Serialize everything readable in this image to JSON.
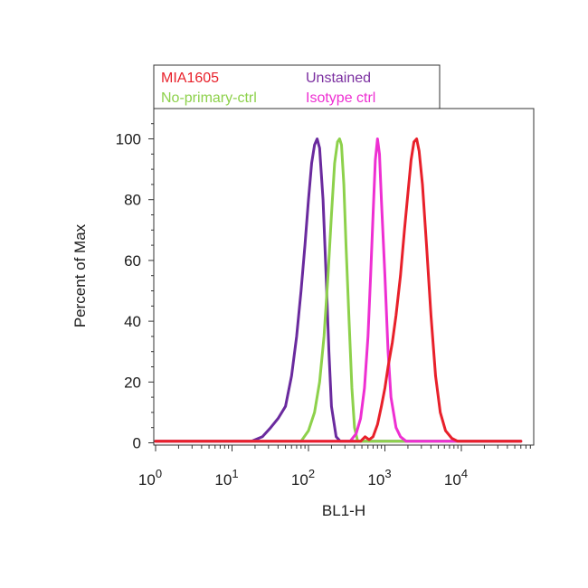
{
  "chart_data": {
    "type": "line",
    "xlabel": "BL1-H",
    "ylabel": "Percent of Max",
    "x_scale": "log",
    "xlim": [
      1,
      60000
    ],
    "ylim": [
      0,
      110
    ],
    "grid": false,
    "legend_position": "top",
    "y_ticks": [
      "0",
      "20",
      "40",
      "60",
      "80",
      "100"
    ],
    "x_ticks": [
      {
        "base": "10",
        "exp": "0"
      },
      {
        "base": "10",
        "exp": "1"
      },
      {
        "base": "10",
        "exp": "2"
      },
      {
        "base": "10",
        "exp": "3"
      },
      {
        "base": "10",
        "exp": "4"
      }
    ],
    "legend": [
      {
        "label": "MIA1605",
        "color": "#e8202a"
      },
      {
        "label": "Unstained",
        "color": "#7b2fa0"
      },
      {
        "label": "No-primary-ctrl",
        "color": "#8dd14b"
      },
      {
        "label": "Isotype ctrl",
        "color": "#ee2fd2"
      }
    ],
    "series": [
      {
        "name": "Unstained",
        "color": "#6a2a9e",
        "x": [
          1,
          18,
          25,
          32,
          40,
          50,
          60,
          70,
          80,
          90,
          100,
          110,
          120,
          130,
          140,
          155,
          170,
          185,
          200,
          230,
          260,
          300,
          60000
        ],
        "y": [
          0.5,
          0.5,
          2,
          5,
          8,
          12,
          22,
          35,
          50,
          65,
          80,
          92,
          98,
          100,
          97,
          80,
          55,
          30,
          12,
          2,
          0.5,
          0.5,
          0.5
        ]
      },
      {
        "name": "No-primary-ctrl",
        "color": "#8dd14b",
        "x": [
          1,
          80,
          100,
          120,
          140,
          160,
          180,
          200,
          220,
          240,
          255,
          270,
          290,
          310,
          340,
          370,
          400,
          440,
          60000
        ],
        "y": [
          0.5,
          0.5,
          4,
          10,
          20,
          35,
          55,
          75,
          92,
          99,
          100,
          98,
          85,
          65,
          40,
          18,
          5,
          0.5,
          0.5
        ]
      },
      {
        "name": "Isotype ctrl",
        "color": "#ee2fd2",
        "x": [
          1,
          350,
          420,
          480,
          540,
          600,
          650,
          700,
          750,
          800,
          850,
          900,
          1000,
          1100,
          1200,
          1400,
          1600,
          1900,
          60000
        ],
        "y": [
          0.5,
          0.5,
          3,
          8,
          18,
          35,
          55,
          75,
          93,
          100,
          95,
          80,
          55,
          30,
          15,
          5,
          2,
          0.5,
          0.5
        ]
      },
      {
        "name": "MIA1605",
        "color": "#e8202a",
        "x": [
          1,
          480,
          550,
          620,
          700,
          800,
          900,
          1000,
          1100,
          1250,
          1400,
          1600,
          1800,
          2000,
          2200,
          2400,
          2600,
          2800,
          3100,
          3500,
          4000,
          4600,
          5300,
          6200,
          7500,
          9000,
          60000
        ],
        "y": [
          0.5,
          0.5,
          2,
          1,
          2,
          6,
          12,
          18,
          25,
          33,
          42,
          55,
          70,
          82,
          93,
          99,
          100,
          96,
          85,
          65,
          42,
          22,
          10,
          4,
          1.5,
          0.5,
          0.5
        ]
      }
    ]
  }
}
